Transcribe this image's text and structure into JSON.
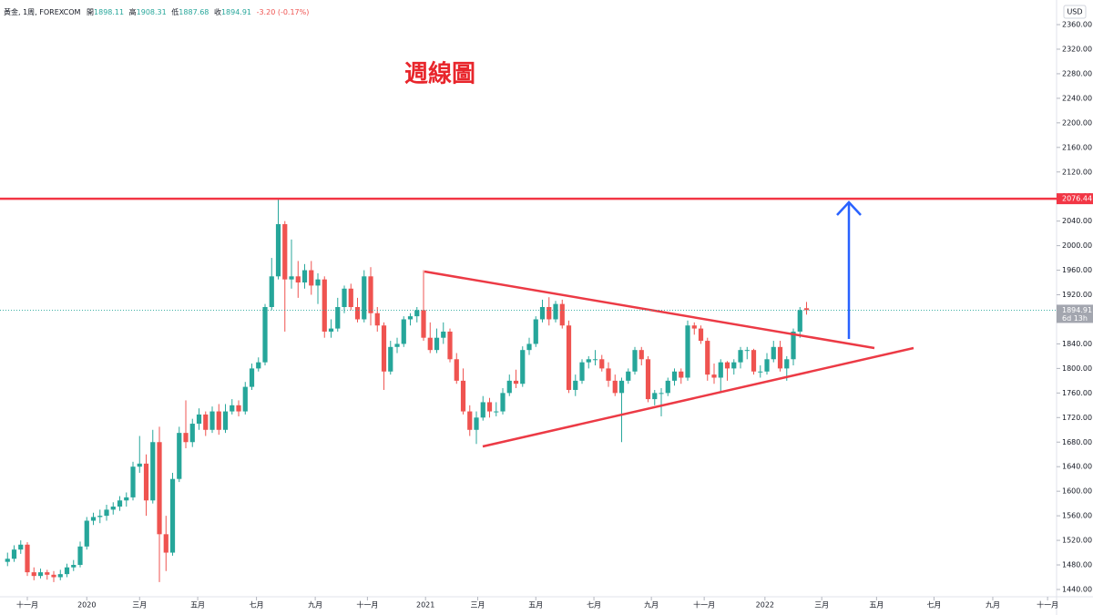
{
  "chart_data": {
    "type": "candlestick",
    "title": "週線圖",
    "header": {
      "symbol": "黃金, 1周, FOREXCOM",
      "open_label": "開",
      "open": "1898.11",
      "high_label": "高",
      "high": "1908.31",
      "low_label": "低",
      "low": "1887.68",
      "close_label": "收",
      "close": "1894.91",
      "change": "-3.20 (-0.17%)"
    },
    "currency": "USD",
    "up_color": "#26a69a",
    "down_color": "#ef5350",
    "x": [
      -3,
      -2,
      -1,
      0,
      1,
      2,
      3,
      4,
      5,
      6,
      7,
      8,
      9,
      10,
      11,
      12,
      13,
      14,
      15,
      16,
      17,
      18,
      19,
      20,
      21,
      22,
      23,
      24,
      25,
      26,
      27,
      28,
      29,
      30,
      31,
      32,
      33,
      34,
      35,
      36,
      37,
      38,
      39,
      40,
      41,
      42,
      43,
      44,
      45,
      46,
      47,
      48,
      49,
      50,
      51,
      52,
      53,
      54,
      55,
      56,
      57,
      58,
      59,
      60,
      61,
      62,
      63,
      64,
      65,
      66,
      67,
      68,
      69,
      70,
      71,
      72,
      73,
      74,
      75,
      76,
      77,
      78,
      79,
      80,
      81,
      82,
      83,
      84,
      85,
      86,
      87,
      88,
      89,
      90,
      91,
      92,
      93,
      94,
      95,
      96,
      97,
      98,
      99,
      100,
      101,
      102,
      103,
      104,
      105,
      106,
      107,
      108,
      109,
      110,
      111,
      112,
      113,
      114,
      115,
      116,
      117,
      118
    ],
    "open": [
      1485,
      1490,
      1505,
      1513,
      1468,
      1462,
      1468,
      1464,
      1460,
      1465,
      1476,
      1480,
      1510,
      1552,
      1558,
      1560,
      1570,
      1575,
      1585,
      1590,
      1640,
      1645,
      1585,
      1680,
      1530,
      1500,
      1620,
      1695,
      1680,
      1710,
      1725,
      1700,
      1730,
      1700,
      1730,
      1740,
      1730,
      1770,
      1800,
      1810,
      1900,
      1950,
      2035,
      1945,
      1950,
      1940,
      1960,
      1935,
      1945,
      1860,
      1865,
      1900,
      1930,
      1900,
      1880,
      1950,
      1890,
      1870,
      1795,
      1835,
      1840,
      1880,
      1885,
      1895,
      1850,
      1830,
      1850,
      1860,
      1815,
      1780,
      1730,
      1700,
      1720,
      1745,
      1730,
      1730,
      1760,
      1780,
      1775,
      1830,
      1840,
      1880,
      1900,
      1880,
      1905,
      1870,
      1765,
      1780,
      1810,
      1815,
      1815,
      1800,
      1780,
      1760,
      1780,
      1795,
      1830,
      1815,
      1750,
      1760,
      1760,
      1780,
      1795,
      1785,
      1870,
      1865,
      1845,
      1790,
      1785,
      1810,
      1800,
      1810,
      1830,
      1830,
      1795,
      1795,
      1815,
      1835,
      1800,
      1815,
      1860,
      1898.11
    ],
    "high": [
      1500,
      1512,
      1520,
      1517,
      1476,
      1474,
      1472,
      1470,
      1472,
      1482,
      1488,
      1518,
      1558,
      1565,
      1570,
      1578,
      1582,
      1592,
      1598,
      1648,
      1690,
      1660,
      1700,
      1705,
      1560,
      1630,
      1705,
      1748,
      1718,
      1735,
      1730,
      1738,
      1742,
      1742,
      1750,
      1748,
      1778,
      1808,
      1818,
      1905,
      1980,
      2076,
      2040,
      2010,
      1975,
      1970,
      1975,
      1955,
      1950,
      1880,
      1915,
      1935,
      1938,
      1915,
      1960,
      1965,
      1900,
      1875,
      1845,
      1850,
      1885,
      1890,
      1900,
      1960,
      1875,
      1865,
      1875,
      1865,
      1825,
      1800,
      1740,
      1730,
      1755,
      1752,
      1745,
      1768,
      1790,
      1798,
      1836,
      1850,
      1885,
      1912,
      1916,
      1910,
      1912,
      1878,
      1790,
      1815,
      1820,
      1830,
      1822,
      1810,
      1790,
      1785,
      1800,
      1835,
      1835,
      1820,
      1765,
      1768,
      1785,
      1800,
      1800,
      1878,
      1875,
      1870,
      1850,
      1808,
      1815,
      1812,
      1815,
      1835,
      1835,
      1832,
      1805,
      1825,
      1845,
      1845,
      1820,
      1865,
      1900,
      1908.31
    ],
    "low": [
      1478,
      1485,
      1498,
      1462,
      1455,
      1458,
      1456,
      1452,
      1455,
      1460,
      1470,
      1476,
      1505,
      1545,
      1548,
      1552,
      1562,
      1568,
      1575,
      1585,
      1630,
      1560,
      1580,
      1452,
      1470,
      1495,
      1615,
      1670,
      1672,
      1700,
      1690,
      1695,
      1692,
      1695,
      1725,
      1722,
      1725,
      1765,
      1795,
      1805,
      1895,
      1945,
      1860,
      1930,
      1915,
      1930,
      1920,
      1905,
      1850,
      1850,
      1860,
      1890,
      1895,
      1875,
      1875,
      1870,
      1860,
      1765,
      1790,
      1825,
      1835,
      1870,
      1875,
      1845,
      1825,
      1825,
      1840,
      1810,
      1775,
      1725,
      1690,
      1677,
      1715,
      1720,
      1722,
      1725,
      1755,
      1768,
      1770,
      1822,
      1835,
      1875,
      1870,
      1875,
      1865,
      1760,
      1755,
      1775,
      1800,
      1805,
      1795,
      1770,
      1755,
      1680,
      1775,
      1790,
      1805,
      1745,
      1740,
      1722,
      1755,
      1772,
      1775,
      1780,
      1855,
      1840,
      1780,
      1775,
      1760,
      1780,
      1790,
      1800,
      1815,
      1790,
      1785,
      1790,
      1810,
      1795,
      1780,
      1805,
      1850,
      1887.68
    ],
    "close": [
      1490,
      1505,
      1513,
      1468,
      1462,
      1468,
      1464,
      1460,
      1465,
      1476,
      1480,
      1510,
      1552,
      1558,
      1560,
      1570,
      1575,
      1585,
      1590,
      1640,
      1645,
      1585,
      1680,
      1530,
      1500,
      1620,
      1695,
      1680,
      1710,
      1725,
      1700,
      1730,
      1700,
      1730,
      1740,
      1730,
      1770,
      1800,
      1810,
      1900,
      1950,
      2035,
      1945,
      1950,
      1940,
      1960,
      1935,
      1945,
      1860,
      1865,
      1900,
      1930,
      1900,
      1880,
      1950,
      1890,
      1870,
      1795,
      1835,
      1840,
      1880,
      1885,
      1895,
      1850,
      1830,
      1850,
      1860,
      1815,
      1780,
      1730,
      1700,
      1720,
      1745,
      1730,
      1730,
      1760,
      1780,
      1775,
      1830,
      1840,
      1880,
      1900,
      1880,
      1905,
      1870,
      1765,
      1780,
      1810,
      1815,
      1815,
      1800,
      1780,
      1760,
      1780,
      1795,
      1830,
      1815,
      1750,
      1760,
      1760,
      1780,
      1795,
      1785,
      1870,
      1865,
      1845,
      1790,
      1785,
      1810,
      1800,
      1810,
      1830,
      1830,
      1795,
      1795,
      1815,
      1835,
      1800,
      1815,
      1860,
      1895,
      1894.91
    ],
    "last_price": {
      "value": 1894.91,
      "label": "1894.91",
      "countdown": "6d 13h"
    },
    "resistance": {
      "value": 2076.44,
      "label": "2076.44",
      "color": "#f23645"
    },
    "xlim": [
      -4.14,
      155.86
    ],
    "xticks": [
      {
        "value": 0,
        "label": "十一月"
      },
      {
        "value": 9,
        "label": "2020"
      },
      {
        "value": 17,
        "label": "三月"
      },
      {
        "value": 25.8,
        "label": "五月"
      },
      {
        "value": 34.7,
        "label": "七月"
      },
      {
        "value": 43.6,
        "label": "九月"
      },
      {
        "value": 51.5,
        "label": "十一月"
      },
      {
        "value": 60.3,
        "label": "2021"
      },
      {
        "value": 68.2,
        "label": "三月"
      },
      {
        "value": 77,
        "label": "五月"
      },
      {
        "value": 85.8,
        "label": "七月"
      },
      {
        "value": 94.5,
        "label": "九月"
      },
      {
        "value": 102.5,
        "label": "十一月"
      },
      {
        "value": 111.7,
        "label": "2022"
      },
      {
        "value": 120.3,
        "label": "三月"
      },
      {
        "value": 128.6,
        "label": "五月"
      },
      {
        "value": 137.3,
        "label": "七月"
      },
      {
        "value": 146.2,
        "label": "九月"
      },
      {
        "value": 154.5,
        "label": "十一月"
      }
    ],
    "ylim": [
      1428.1,
      2400.1
    ],
    "yticks": [
      {
        "value": 1440,
        "label": "1440.00"
      },
      {
        "value": 1480,
        "label": "1480.00"
      },
      {
        "value": 1520,
        "label": "1520.00"
      },
      {
        "value": 1560,
        "label": "1560.00"
      },
      {
        "value": 1600,
        "label": "1600.00"
      },
      {
        "value": 1640,
        "label": "1640.00"
      },
      {
        "value": 1680,
        "label": "1680.00"
      },
      {
        "value": 1720,
        "label": "1720.00"
      },
      {
        "value": 1760,
        "label": "1760.00"
      },
      {
        "value": 1800,
        "label": "1800.00"
      },
      {
        "value": 1840,
        "label": "1840.00"
      },
      {
        "value": 1880,
        "label": "1880.00"
      },
      {
        "value": 1920,
        "label": "1920.00"
      },
      {
        "value": 1960,
        "label": "1960.00"
      },
      {
        "value": 2000,
        "label": "2000.00"
      },
      {
        "value": 2040,
        "label": "2040.00"
      },
      {
        "value": 2080,
        "label": "2080.00"
      },
      {
        "value": 2120,
        "label": "2120.00"
      },
      {
        "value": 2160,
        "label": "2160.00"
      },
      {
        "value": 2200,
        "label": "2200.00"
      },
      {
        "value": 2240,
        "label": "2240.00"
      },
      {
        "value": 2280,
        "label": "2280.00"
      },
      {
        "value": 2320,
        "label": "2320.00"
      },
      {
        "value": 2360,
        "label": "2360.00"
      }
    ],
    "grid": false
  }
}
